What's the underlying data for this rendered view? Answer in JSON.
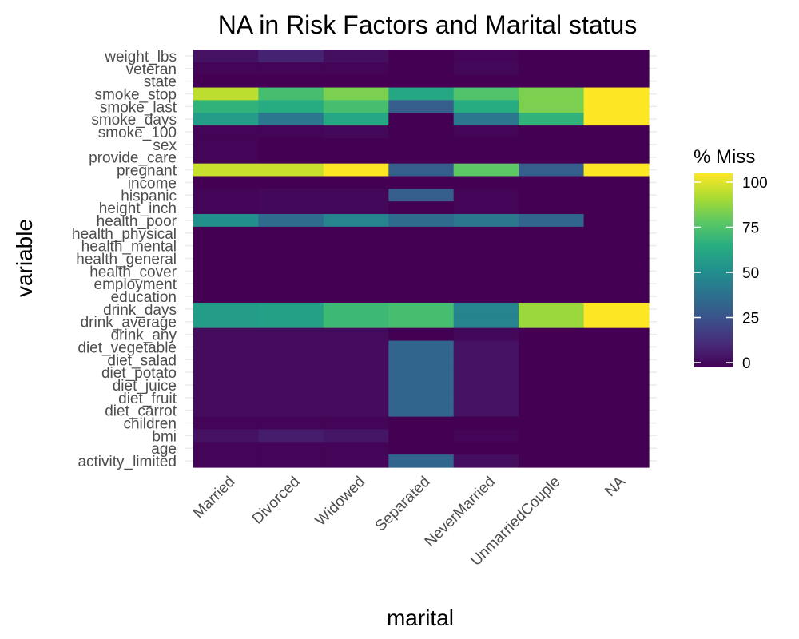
{
  "chart_data": {
    "type": "heatmap",
    "title": "NA in Risk Factors and Marital status",
    "xlabel": "marital",
    "ylabel": "variable",
    "x_categories": [
      "Married",
      "Divorced",
      "Widowed",
      "Separated",
      "NeverMarried",
      "UnmarriedCouple",
      "NA"
    ],
    "y_categories": [
      "weight_lbs",
      "veteran",
      "state",
      "smoke_stop",
      "smoke_last",
      "smoke_days",
      "smoke_100",
      "sex",
      "provide_care",
      "pregnant",
      "income",
      "hispanic",
      "height_inch",
      "health_poor",
      "health_physical",
      "health_mental",
      "health_general",
      "health_cover",
      "employment",
      "education",
      "drink_days",
      "drink_average",
      "drink_any",
      "diet_vegetable",
      "diet_salad",
      "diet_potato",
      "diet_juice",
      "diet_fruit",
      "diet_carrot",
      "children",
      "bmi",
      "age",
      "activity_limited"
    ],
    "values": [
      [
        5,
        10,
        4,
        0,
        1,
        0,
        0
      ],
      [
        1,
        1,
        1,
        0,
        2,
        0,
        0
      ],
      [
        0,
        0,
        0,
        0,
        0,
        0,
        0
      ],
      [
        90,
        70,
        80,
        60,
        72,
        80,
        100
      ],
      [
        65,
        62,
        70,
        30,
        62,
        80,
        100
      ],
      [
        55,
        40,
        60,
        0,
        40,
        65,
        100
      ],
      [
        1,
        1,
        2,
        0,
        1,
        0,
        0
      ],
      [
        1,
        0,
        0,
        0,
        0,
        0,
        0
      ],
      [
        1,
        0,
        0,
        0,
        0,
        0,
        0
      ],
      [
        92,
        92,
        100,
        30,
        75,
        30,
        100
      ],
      [
        0,
        0,
        0,
        0,
        0,
        0,
        0
      ],
      [
        1,
        2,
        2,
        30,
        1,
        0,
        0
      ],
      [
        1,
        2,
        2,
        0,
        1,
        0,
        0
      ],
      [
        50,
        35,
        45,
        35,
        40,
        33,
        0
      ],
      [
        0,
        0,
        0,
        0,
        0,
        0,
        0
      ],
      [
        0,
        0,
        0,
        0,
        0,
        0,
        0
      ],
      [
        0,
        0,
        0,
        0,
        0,
        0,
        0
      ],
      [
        0,
        0,
        0,
        0,
        0,
        0,
        0
      ],
      [
        0,
        0,
        0,
        0,
        0,
        0,
        0
      ],
      [
        0,
        0,
        0,
        0,
        0,
        0,
        0
      ],
      [
        55,
        57,
        68,
        70,
        45,
        85,
        100
      ],
      [
        55,
        57,
        68,
        70,
        45,
        85,
        100
      ],
      [
        3,
        3,
        3,
        0,
        2,
        0,
        0
      ],
      [
        3,
        3,
        3,
        33,
        5,
        0,
        0
      ],
      [
        3,
        3,
        3,
        33,
        5,
        0,
        0
      ],
      [
        3,
        3,
        3,
        33,
        5,
        0,
        0
      ],
      [
        3,
        3,
        3,
        33,
        5,
        0,
        0
      ],
      [
        3,
        3,
        3,
        33,
        5,
        0,
        0
      ],
      [
        3,
        3,
        3,
        33,
        5,
        0,
        0
      ],
      [
        1,
        1,
        1,
        0,
        0,
        0,
        0
      ],
      [
        5,
        8,
        6,
        0,
        1,
        0,
        0
      ],
      [
        1,
        1,
        1,
        0,
        0,
        0,
        0
      ],
      [
        1,
        1,
        1,
        33,
        4,
        0,
        0
      ]
    ],
    "value_range": [
      0,
      100
    ],
    "colorscale": "viridis",
    "legend": {
      "title": "% Miss",
      "ticks": [
        0,
        25,
        50,
        75,
        100
      ],
      "position": "right"
    },
    "grid": true
  }
}
